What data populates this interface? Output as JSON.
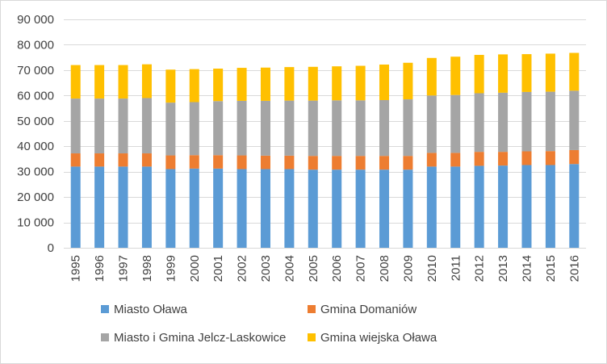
{
  "chart_data": {
    "type": "bar",
    "stacked": true,
    "categories": [
      "1995",
      "1996",
      "1997",
      "1998",
      "1999",
      "2000",
      "2001",
      "2002",
      "2003",
      "2004",
      "2005",
      "2006",
      "2007",
      "2008",
      "2009",
      "2010",
      "2011",
      "2012",
      "2013",
      "2014",
      "2015",
      "2016"
    ],
    "series": [
      {
        "name": "Miasto Oława",
        "color": "#5b9bd5",
        "values": [
          32000,
          32000,
          32000,
          32000,
          31000,
          31200,
          31200,
          31000,
          31000,
          31000,
          30800,
          30800,
          30800,
          30800,
          30800,
          32000,
          32000,
          32300,
          32400,
          32600,
          32600,
          33000
        ]
      },
      {
        "name": "Gmina Domaniów",
        "color": "#ed7d31",
        "values": [
          5200,
          5200,
          5200,
          5200,
          5400,
          5300,
          5300,
          5400,
          5300,
          5300,
          5400,
          5400,
          5400,
          5400,
          5400,
          5400,
          5400,
          5500,
          5400,
          5400,
          5500,
          5500
        ]
      },
      {
        "name": "Miasto i Gmina Jelcz-Laskowice",
        "color": "#a5a5a5",
        "values": [
          21600,
          21600,
          21600,
          21800,
          20800,
          20900,
          21300,
          21500,
          21600,
          21700,
          21800,
          21900,
          21900,
          22000,
          22300,
          22600,
          22800,
          23100,
          23300,
          23400,
          23400,
          23400
        ]
      },
      {
        "name": "Gmina wiejska Oława",
        "color": "#ffc000",
        "values": [
          13200,
          13200,
          13200,
          13300,
          13000,
          13000,
          12800,
          13000,
          13100,
          13200,
          13300,
          13400,
          13600,
          14000,
          14400,
          14800,
          15100,
          15100,
          15100,
          14900,
          15000,
          14900
        ]
      }
    ],
    "yticks": [
      "0",
      "10 000",
      "20 000",
      "30 000",
      "40 000",
      "50 000",
      "60 000",
      "70 000",
      "80 000",
      "90 000"
    ],
    "ylim": [
      0,
      90000
    ],
    "grid": true,
    "legend_position": "bottom"
  }
}
